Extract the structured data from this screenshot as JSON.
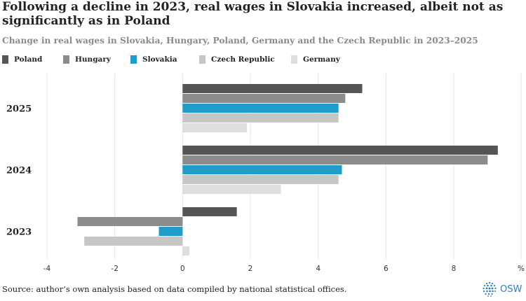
{
  "title": "Following a decline in 2023, real wages in Slovakia increased, albeit not as significantly as in Poland",
  "subtitle": "Change in real wages in Slovakia, Hungary, Poland, Germany and the Czech Republic in 2023–2025",
  "footer": {
    "source": "Source: author’s own analysis based on data compiled by national statistical offices.",
    "logo_text": "OSW"
  },
  "colors": {
    "Poland": "#555555",
    "Hungary": "#8c8c8c",
    "Slovakia": "#1f9dc8",
    "Czech Republic": "#c6c6c6",
    "Germany": "#dedede"
  },
  "chart_data": {
    "type": "bar",
    "orientation": "horizontal",
    "categories": [
      "2025",
      "2024",
      "2023"
    ],
    "series": [
      {
        "name": "Poland",
        "values": [
          5.3,
          9.3,
          1.6
        ]
      },
      {
        "name": "Hungary",
        "values": [
          4.8,
          9.0,
          -3.1
        ]
      },
      {
        "name": "Slovakia",
        "values": [
          4.6,
          4.7,
          -0.7
        ]
      },
      {
        "name": "Czech Republic",
        "values": [
          4.6,
          4.6,
          -2.9
        ]
      },
      {
        "name": "Germany",
        "values": [
          1.9,
          2.9,
          0.2
        ]
      }
    ],
    "xlim": [
      -4,
      10
    ],
    "xticks": [
      "-4",
      "-2",
      "0",
      "2",
      "4",
      "6",
      "8",
      "%"
    ],
    "grid": true,
    "legend": "top-left"
  }
}
